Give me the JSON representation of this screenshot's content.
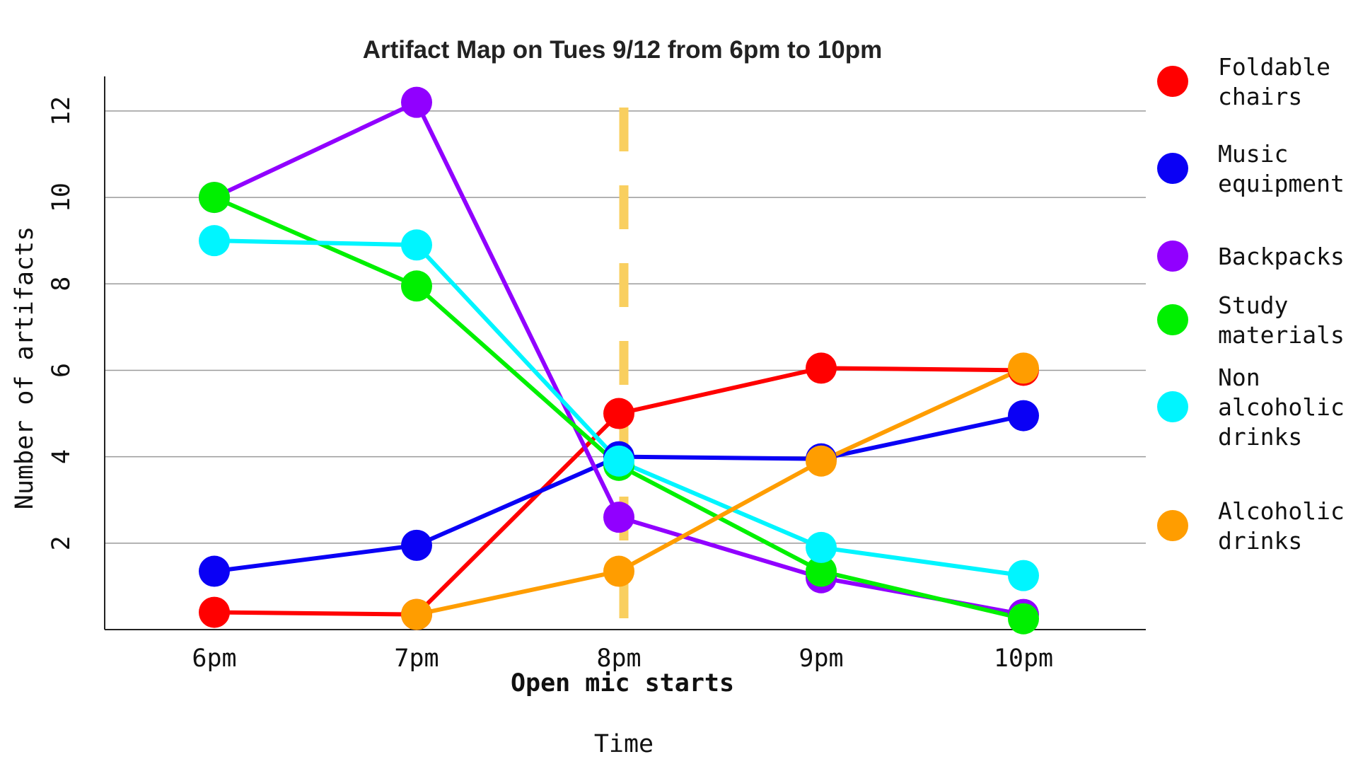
{
  "chart_data": {
    "type": "line",
    "title": "Artifact Map on Tues 9/12 from 6pm to 10pm",
    "xlabel": "Time",
    "ylabel": "Number of artifacts",
    "categories": [
      "6pm",
      "7pm",
      "8pm",
      "9pm",
      "10pm"
    ],
    "ylim": [
      0,
      12.8
    ],
    "yticks": [
      2,
      4,
      6,
      8,
      10,
      12
    ],
    "grid": true,
    "legend_position": "right",
    "annotation": {
      "x": "8pm",
      "text": "Open mic starts",
      "color": "#F9CF5F"
    },
    "series": [
      {
        "name": "Foldable chairs",
        "color": "#FF0000",
        "values": [
          0.4,
          0.35,
          5.0,
          6.05,
          6.0
        ]
      },
      {
        "name": "Music equipment",
        "color": "#0A00F5",
        "values": [
          1.35,
          1.95,
          4.0,
          3.95,
          4.95
        ]
      },
      {
        "name": "Backpacks",
        "color": "#9100FF",
        "values": [
          10.0,
          12.2,
          2.6,
          1.2,
          0.35
        ]
      },
      {
        "name": "Study materials",
        "color": "#00F000",
        "values": [
          10.0,
          7.95,
          3.8,
          1.35,
          0.25
        ]
      },
      {
        "name": "Non alcoholic drinks",
        "color": "#00F5FF",
        "values": [
          9.0,
          8.9,
          3.9,
          1.9,
          1.25
        ]
      },
      {
        "name": "Alcoholic drinks",
        "color": "#FF9D00",
        "values": [
          null,
          0.35,
          1.35,
          3.9,
          6.05
        ]
      }
    ]
  }
}
